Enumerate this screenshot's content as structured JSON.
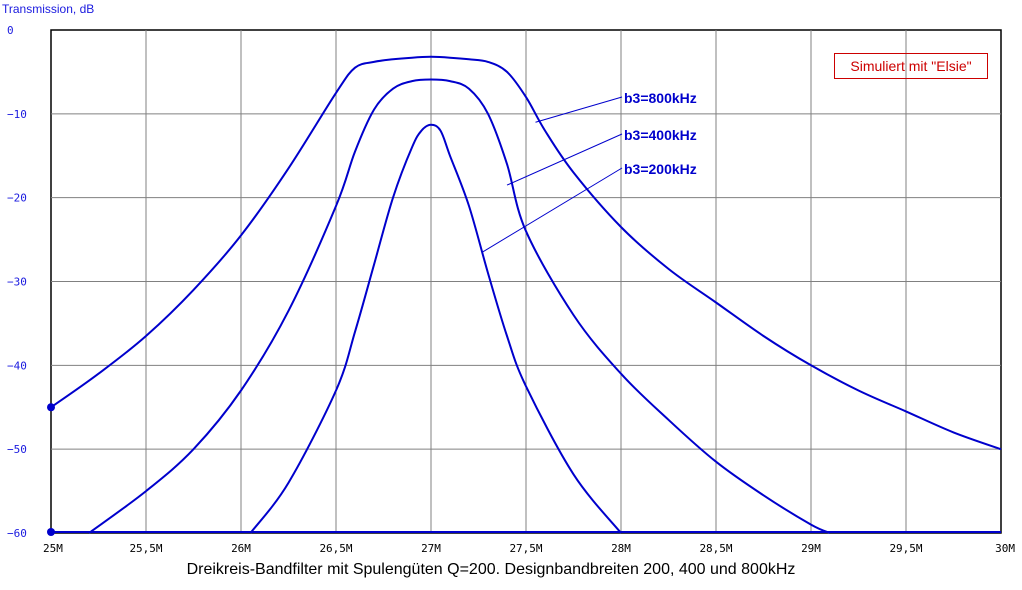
{
  "chart_data": {
    "type": "line",
    "ylabel": "Transmission, dB",
    "xlabel": "",
    "title": "Dreikreis-Bandfilter mit Spulengüten Q=200.  Designbandbreiten 200, 400 und 800kHz",
    "annotation": "Simuliert mit \"Elsie\"",
    "xlim": [
      25,
      30
    ],
    "ylim": [
      -60,
      0
    ],
    "grid": true,
    "x_ticks": [
      25,
      25.5,
      26,
      26.5,
      27,
      27.5,
      28,
      28.5,
      29,
      29.5,
      30
    ],
    "x_tick_labels": [
      "25M",
      "25,5M",
      "26M",
      "26,5M",
      "27M",
      "27,5M",
      "28M",
      "28,5M",
      "29M",
      "29,5M",
      "30M"
    ],
    "y_ticks": [
      0,
      -10,
      -20,
      -30,
      -40,
      -50,
      -60
    ],
    "y_tick_labels": [
      "0",
      "−10",
      "−20",
      "−30",
      "−40",
      "−50",
      "−60"
    ],
    "colors": {
      "curve": "#0000cc",
      "grid": "#808080",
      "axis_text": "#1a1adf",
      "annotation": "#cc0000"
    },
    "series": [
      {
        "name": "b3=800kHz",
        "label_anchor": [
          27.55,
          -11
        ],
        "x": [
          25.0,
          25.25,
          25.5,
          25.75,
          26.0,
          26.25,
          26.5,
          26.6,
          26.7,
          26.8,
          26.9,
          27.0,
          27.1,
          27.2,
          27.3,
          27.4,
          27.5,
          27.6,
          27.75,
          28.0,
          28.25,
          28.5,
          28.75,
          29.0,
          29.25,
          29.5,
          29.75,
          30.0
        ],
        "y": [
          -45,
          -41,
          -36.5,
          -31,
          -24.5,
          -16.5,
          -7.5,
          -4.5,
          -3.8,
          -3.5,
          -3.3,
          -3.2,
          -3.3,
          -3.5,
          -3.8,
          -5,
          -8,
          -12,
          -17,
          -23.5,
          -28.5,
          -32.5,
          -36.5,
          -40,
          -43,
          -45.5,
          -48,
          -50
        ]
      },
      {
        "name": "b3=400kHz",
        "label_anchor": [
          27.4,
          -18.5
        ],
        "x": [
          25.2,
          25.5,
          25.75,
          26.0,
          26.25,
          26.5,
          26.6,
          26.7,
          26.8,
          26.9,
          27.0,
          27.1,
          27.2,
          27.3,
          27.4,
          27.5,
          27.75,
          28.0,
          28.25,
          28.5,
          28.75,
          29.0,
          29.1
        ],
        "y": [
          -60,
          -55,
          -50,
          -43,
          -33.5,
          -21,
          -14.5,
          -9.5,
          -7,
          -6.1,
          -5.9,
          -6.1,
          -7,
          -10,
          -16,
          -24,
          -34,
          -41,
          -46.5,
          -51.5,
          -55.5,
          -59,
          -60
        ]
      },
      {
        "name": "b3=200kHz",
        "label_anchor": [
          27.27,
          -26.5
        ],
        "x": [
          26.05,
          26.25,
          26.5,
          26.6,
          26.7,
          26.8,
          26.9,
          26.95,
          27.0,
          27.05,
          27.1,
          27.2,
          27.3,
          27.4,
          27.5,
          27.75,
          28.0
        ],
        "y": [
          -60,
          -54,
          -43,
          -36,
          -28,
          -20,
          -14,
          -12,
          -11.3,
          -12,
          -15,
          -21,
          -29,
          -36.5,
          -42.5,
          -53,
          -60
        ]
      }
    ],
    "markers": [
      {
        "x": 25,
        "y": -45
      },
      {
        "x": 25,
        "y": -60
      }
    ]
  }
}
